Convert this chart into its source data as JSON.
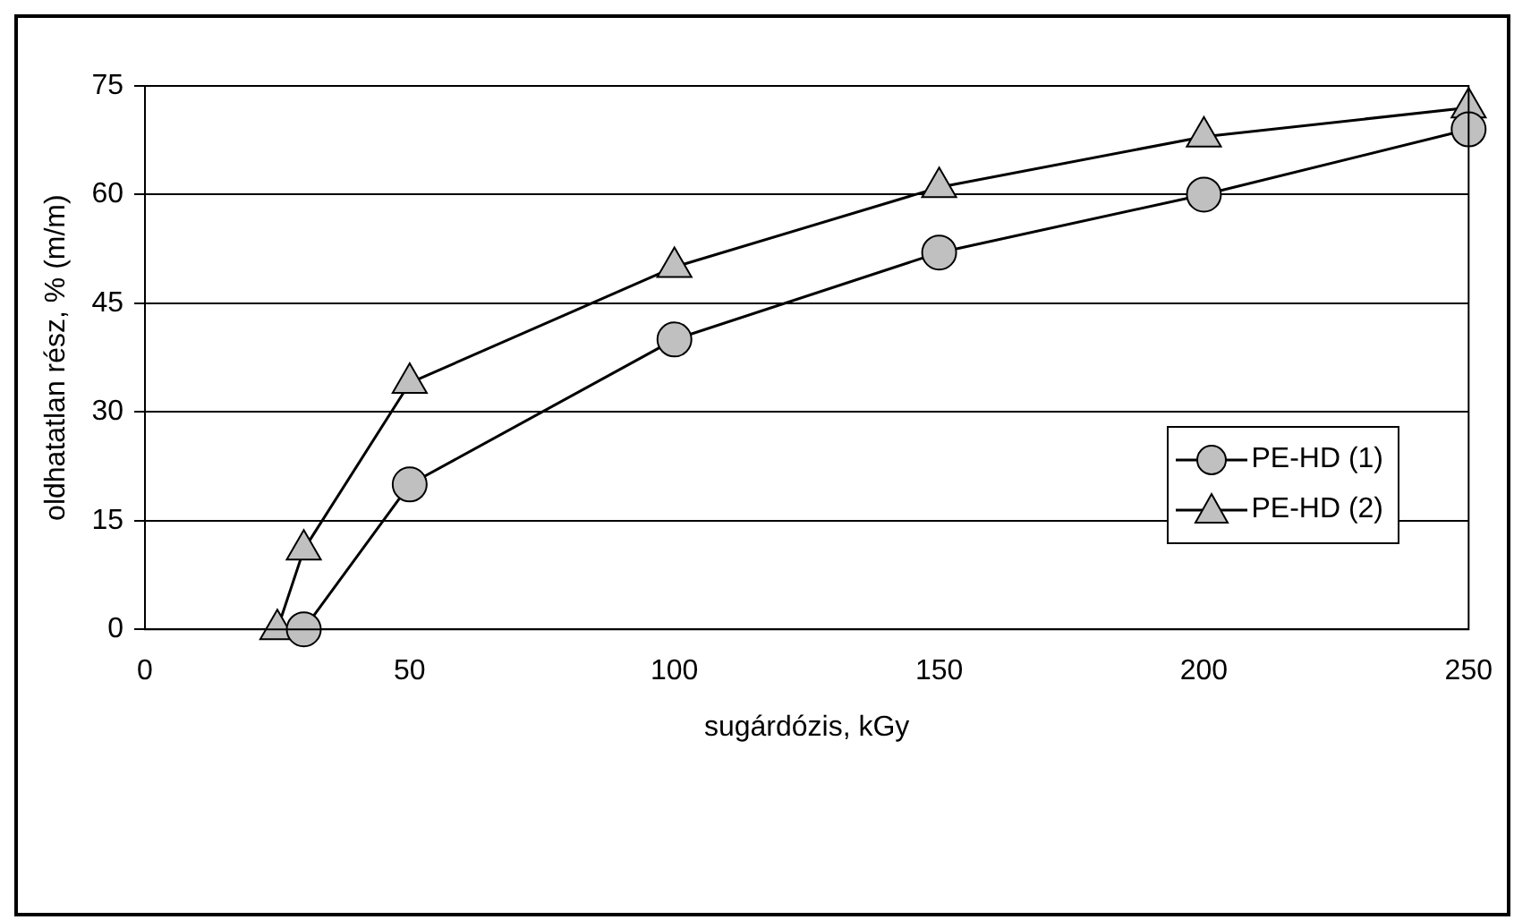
{
  "chart_data": {
    "type": "line",
    "xlabel": "sugárdózis, kGy",
    "ylabel": "oldhatatlan rész, % (m/m)",
    "xlim": [
      0,
      250
    ],
    "xticks": [
      0,
      50,
      100,
      150,
      200,
      250
    ],
    "ylim": [
      0,
      75
    ],
    "yticks": [
      0,
      15,
      30,
      45,
      60,
      75
    ],
    "grid": "y",
    "legend": "right",
    "series": [
      {
        "name": "PE-HD (1)",
        "color": "#c0c0c0",
        "marker": "circle",
        "x": [
          30,
          50,
          100,
          150,
          200,
          250
        ],
        "values": [
          0,
          20,
          40,
          52,
          60,
          69
        ]
      },
      {
        "name": "PE-HD (2)",
        "color": "#c0c0c0",
        "marker": "triangle",
        "x": [
          25,
          30,
          50,
          100,
          150,
          200,
          250
        ],
        "values": [
          0,
          11,
          34,
          50,
          61,
          68,
          72
        ]
      }
    ]
  }
}
